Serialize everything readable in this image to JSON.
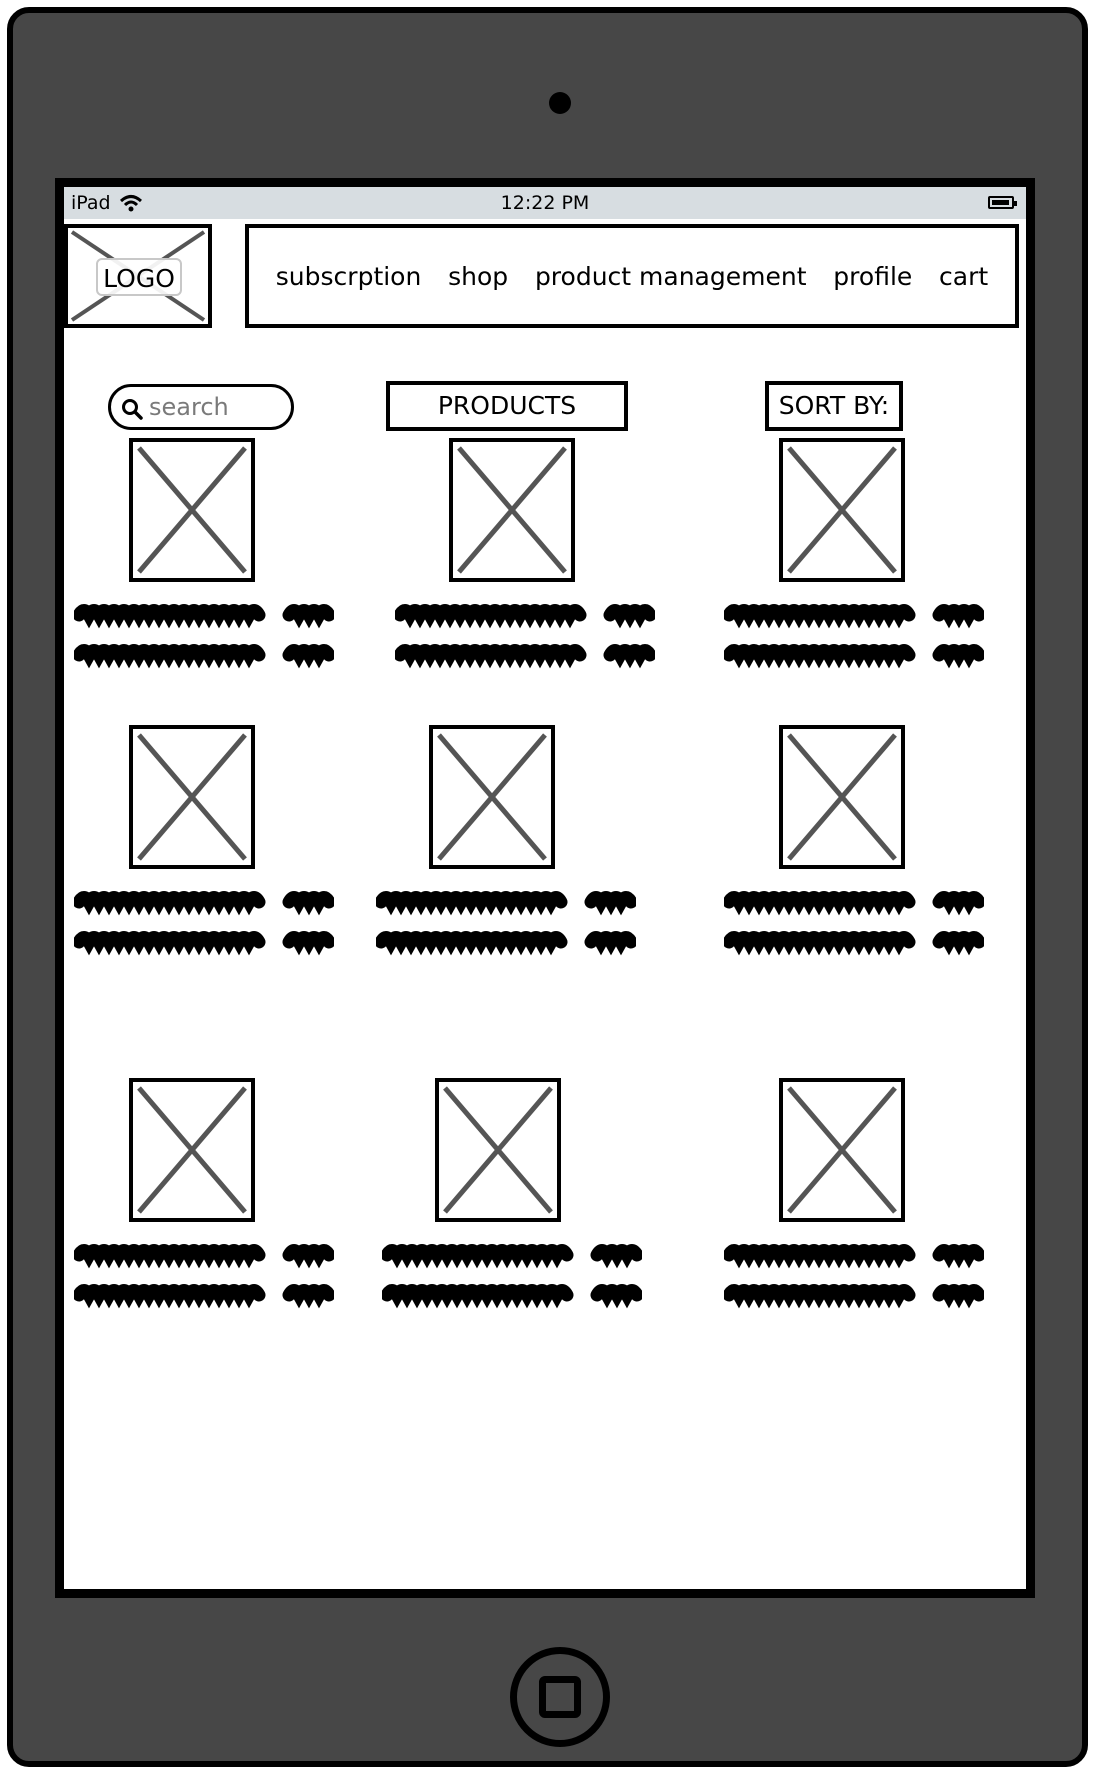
{
  "status_bar": {
    "device": "iPad",
    "time": "12:22 PM"
  },
  "header": {
    "logo_label": "LOGO",
    "nav_items": [
      {
        "label": "subscrption"
      },
      {
        "label": "shop"
      },
      {
        "label": "product management"
      },
      {
        "label": "profile"
      },
      {
        "label": "cart"
      }
    ]
  },
  "toolbar": {
    "search_placeholder": "search",
    "products_label": "PRODUCTS",
    "sort_label": "SORT BY:"
  },
  "icons": {
    "wifi": "wifi-icon",
    "battery": "battery-icon",
    "search": "search-icon",
    "image_placeholder": "image-placeholder-icon"
  },
  "colors": {
    "device_body": "#474747",
    "status_bar": "#d7dde1",
    "placeholder_cross": "#555555"
  },
  "products": [
    {
      "row": 1,
      "column": 1
    },
    {
      "row": 1,
      "column": 2
    },
    {
      "row": 1,
      "column": 3
    },
    {
      "row": 2,
      "column": 1
    },
    {
      "row": 2,
      "column": 2
    },
    {
      "row": 2,
      "column": 3
    },
    {
      "row": 3,
      "column": 1
    },
    {
      "row": 3,
      "column": 2
    },
    {
      "row": 3,
      "column": 3
    }
  ]
}
